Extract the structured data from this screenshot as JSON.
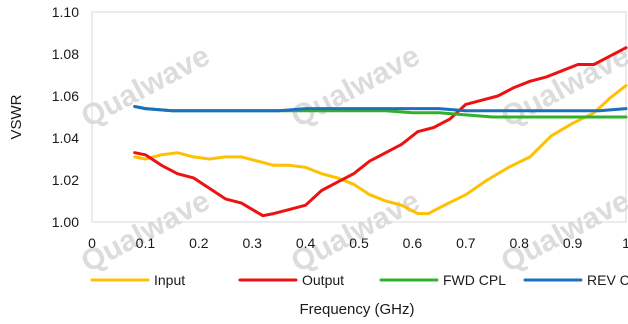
{
  "chart_data": {
    "type": "line",
    "xlabel": "Frequency (GHz)",
    "ylabel": "VSWR",
    "xlim": [
      0,
      1
    ],
    "ylim": [
      1.0,
      1.1
    ],
    "xticks": [
      "0",
      "0.1",
      "0.2",
      "0.3",
      "0.4",
      "0.5",
      "0.6",
      "0.7",
      "0.8",
      "0.9",
      "1"
    ],
    "yticks": [
      "1.00",
      "1.02",
      "1.04",
      "1.06",
      "1.08",
      "1.10"
    ],
    "grid": false,
    "legend_position": "bottom",
    "watermark": "Qualwave",
    "series": [
      {
        "name": "Input",
        "color": "#FFC000",
        "x": [
          0.08,
          0.1,
          0.13,
          0.16,
          0.19,
          0.22,
          0.25,
          0.28,
          0.31,
          0.34,
          0.37,
          0.4,
          0.43,
          0.46,
          0.49,
          0.52,
          0.55,
          0.58,
          0.61,
          0.63,
          0.66,
          0.7,
          0.74,
          0.78,
          0.82,
          0.86,
          0.9,
          0.94,
          0.97,
          1.0
        ],
        "y": [
          1.031,
          1.03,
          1.032,
          1.033,
          1.031,
          1.03,
          1.031,
          1.031,
          1.029,
          1.027,
          1.027,
          1.026,
          1.023,
          1.021,
          1.018,
          1.013,
          1.01,
          1.008,
          1.004,
          1.004,
          1.008,
          1.013,
          1.02,
          1.026,
          1.031,
          1.041,
          1.047,
          1.052,
          1.059,
          1.065
        ]
      },
      {
        "name": "Output",
        "color": "#EE1111",
        "x": [
          0.08,
          0.1,
          0.13,
          0.16,
          0.19,
          0.22,
          0.25,
          0.28,
          0.3,
          0.32,
          0.34,
          0.37,
          0.4,
          0.43,
          0.46,
          0.49,
          0.52,
          0.55,
          0.58,
          0.61,
          0.64,
          0.67,
          0.7,
          0.73,
          0.76,
          0.79,
          0.82,
          0.85,
          0.88,
          0.91,
          0.94,
          0.97,
          1.0
        ],
        "y": [
          1.033,
          1.032,
          1.027,
          1.023,
          1.021,
          1.016,
          1.011,
          1.009,
          1.006,
          1.003,
          1.004,
          1.006,
          1.008,
          1.015,
          1.019,
          1.023,
          1.029,
          1.033,
          1.037,
          1.043,
          1.045,
          1.049,
          1.056,
          1.058,
          1.06,
          1.064,
          1.067,
          1.069,
          1.072,
          1.075,
          1.075,
          1.079,
          1.083
        ]
      },
      {
        "name": "FWD CPL",
        "color": "#33B02B",
        "x": [
          0.08,
          0.1,
          0.15,
          0.2,
          0.25,
          0.3,
          0.35,
          0.4,
          0.45,
          0.5,
          0.55,
          0.6,
          0.65,
          0.7,
          0.75,
          0.8,
          0.85,
          0.9,
          0.95,
          1.0
        ],
        "y": [
          1.055,
          1.054,
          1.053,
          1.053,
          1.053,
          1.053,
          1.053,
          1.053,
          1.053,
          1.053,
          1.053,
          1.052,
          1.052,
          1.051,
          1.05,
          1.05,
          1.05,
          1.05,
          1.05,
          1.05
        ]
      },
      {
        "name": "REV CPL",
        "color": "#1C6FBB",
        "x": [
          0.08,
          0.1,
          0.15,
          0.2,
          0.25,
          0.3,
          0.35,
          0.4,
          0.45,
          0.5,
          0.55,
          0.6,
          0.65,
          0.7,
          0.75,
          0.8,
          0.85,
          0.9,
          0.95,
          1.0
        ],
        "y": [
          1.055,
          1.054,
          1.053,
          1.053,
          1.053,
          1.053,
          1.053,
          1.054,
          1.054,
          1.054,
          1.054,
          1.054,
          1.054,
          1.053,
          1.053,
          1.053,
          1.053,
          1.053,
          1.053,
          1.054
        ]
      }
    ]
  }
}
